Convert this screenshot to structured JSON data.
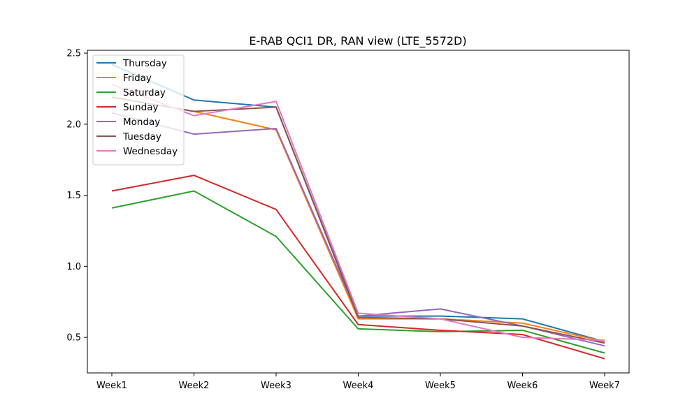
{
  "chart_data": {
    "type": "line",
    "title": "E-RAB QCI1 DR, RAN view (LTE_5572D)",
    "xlabel": "",
    "ylabel": "",
    "categories": [
      "Week1",
      "Week2",
      "Week3",
      "Week4",
      "Week5",
      "Week6",
      "Week7"
    ],
    "ylim": [
      0.25,
      2.52
    ],
    "yticks": [
      0.5,
      1.0,
      1.5,
      2.0,
      2.5
    ],
    "ytick_labels": [
      "0.5",
      "1.0",
      "1.5",
      "2.0",
      "2.5"
    ],
    "grid": false,
    "legend_position": "upper-left",
    "series": [
      {
        "name": "Thursday",
        "color": "#1f77b4",
        "values": [
          2.42,
          2.17,
          2.12,
          0.65,
          0.65,
          0.63,
          0.47
        ]
      },
      {
        "name": "Friday",
        "color": "#ff7f0e",
        "values": [
          2.19,
          2.09,
          1.96,
          0.63,
          0.63,
          0.6,
          0.47
        ]
      },
      {
        "name": "Saturday",
        "color": "#2ca02c",
        "values": [
          1.41,
          1.53,
          1.21,
          0.56,
          0.54,
          0.55,
          0.39
        ]
      },
      {
        "name": "Sunday",
        "color": "#d62728",
        "values": [
          1.53,
          1.64,
          1.4,
          0.59,
          0.55,
          0.52,
          0.35
        ]
      },
      {
        "name": "Monday",
        "color": "#9467bd",
        "values": [
          2.08,
          1.93,
          1.97,
          0.65,
          0.7,
          0.58,
          0.44
        ]
      },
      {
        "name": "Tuesday",
        "color": "#8c564b",
        "values": [
          2.19,
          2.09,
          2.12,
          0.64,
          0.63,
          0.58,
          0.46
        ]
      },
      {
        "name": "Wednesday",
        "color": "#e377c2",
        "values": [
          2.28,
          2.06,
          2.16,
          0.67,
          0.63,
          0.5,
          0.48
        ]
      }
    ]
  }
}
